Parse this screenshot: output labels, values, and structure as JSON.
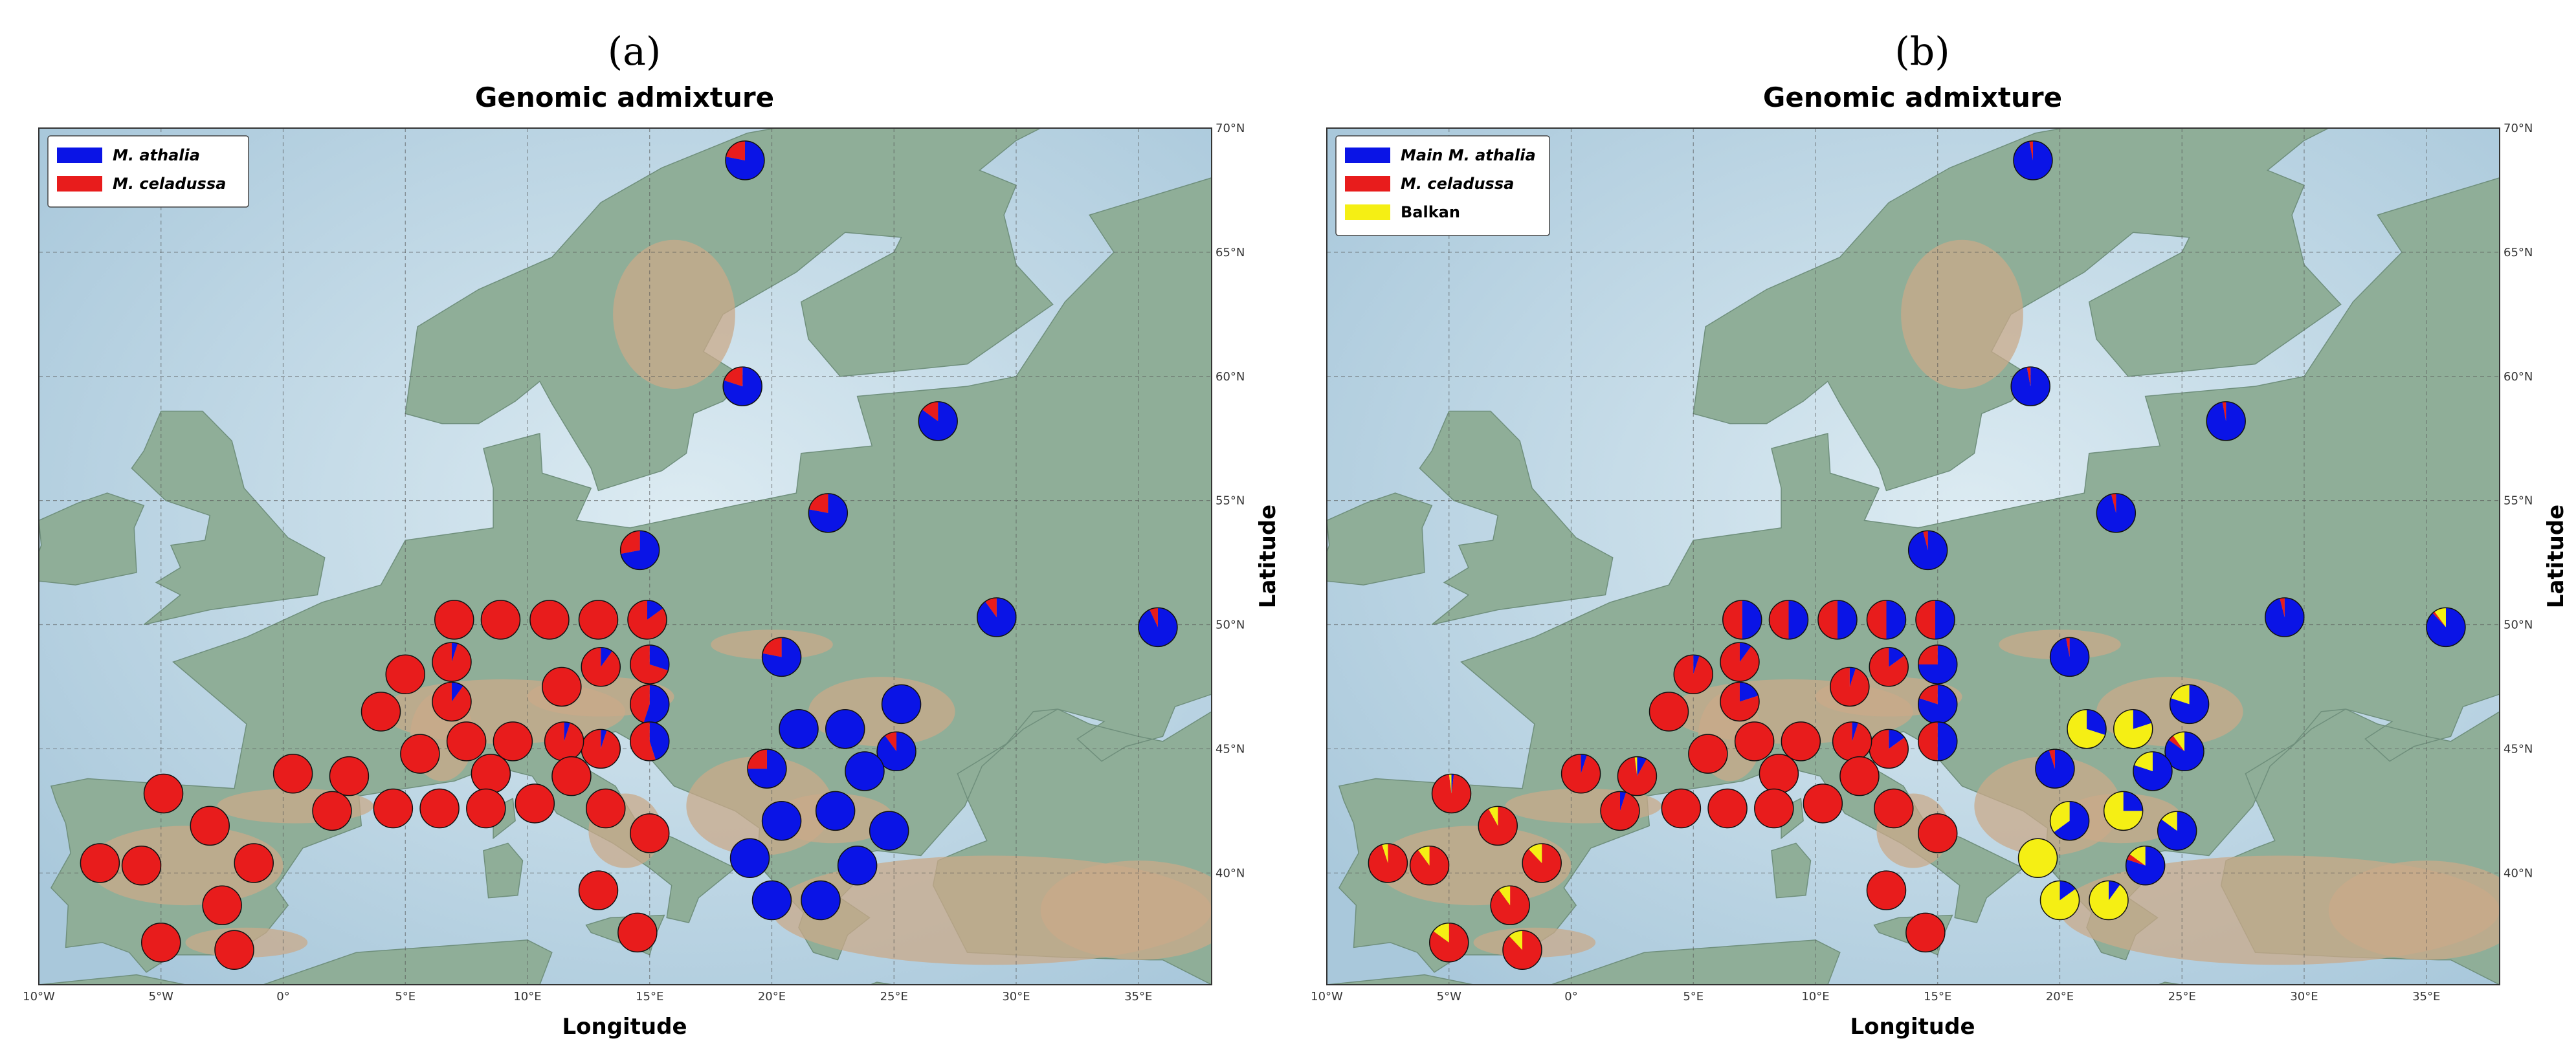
{
  "panels": [
    {
      "letter": "(a)",
      "title": "Genomic admixture",
      "xlabel": "Longitude",
      "ylabel": "Latitude",
      "legend": [
        {
          "label": "M. athalia",
          "color": "#0a14e6",
          "italic": true
        },
        {
          "label": "M. celadussa",
          "color": "#e81c1c",
          "italic": true
        }
      ]
    },
    {
      "letter": "(b)",
      "title": "Genomic admixture",
      "xlabel": "Longitude",
      "ylabel": "Latitude",
      "legend": [
        {
          "label": "Main M. athalia",
          "color": "#0a14e6",
          "italic": true
        },
        {
          "label": "M. celadussa",
          "color": "#e81c1c",
          "italic": true
        },
        {
          "label": "Balkan",
          "color": "#f5ef14",
          "italic": false
        }
      ]
    }
  ],
  "map_axes": {
    "lon_ticks": [
      "10°W",
      "5°W",
      "0°",
      "5°E",
      "10°E",
      "15°E",
      "20°E",
      "25°E",
      "30°E",
      "35°E"
    ],
    "lat_ticks": [
      "40°N",
      "45°N",
      "50°N",
      "55°N",
      "60°N",
      "65°N",
      "70°N"
    ],
    "lon_range": [
      -10,
      38
    ],
    "lat_range": [
      35.5,
      70
    ]
  },
  "colors": {
    "athalia": "#0a14e6",
    "celadussa": "#e81c1c",
    "balkan": "#f5ef14",
    "sea": "#c3dbe8",
    "land": "#8fae98",
    "land_high": "#c9a98a"
  },
  "chart_data": [
    {
      "type": "pie-map",
      "title": "Genomic admixture",
      "xlabel": "Longitude",
      "ylabel": "Latitude",
      "legend": [
        "M. athalia",
        "M. celadussa"
      ],
      "populations": [
        {
          "lon": 18.9,
          "lat": 68.7,
          "athalia": 0.78,
          "celadussa": 0.22
        },
        {
          "lon": 18.8,
          "lat": 59.6,
          "athalia": 0.8,
          "celadussa": 0.2
        },
        {
          "lon": 26.8,
          "lat": 58.2,
          "athalia": 0.85,
          "celadussa": 0.15
        },
        {
          "lon": 22.3,
          "lat": 54.5,
          "athalia": 0.78,
          "celadussa": 0.22
        },
        {
          "lon": 14.6,
          "lat": 53.0,
          "athalia": 0.72,
          "celadussa": 0.28
        },
        {
          "lon": 29.2,
          "lat": 50.3,
          "athalia": 0.9,
          "celadussa": 0.1
        },
        {
          "lon": 35.8,
          "lat": 49.9,
          "athalia": 0.93,
          "celadussa": 0.07
        },
        {
          "lon": 20.4,
          "lat": 48.7,
          "athalia": 0.78,
          "celadussa": 0.22
        },
        {
          "lon": 7.0,
          "lat": 50.2,
          "athalia": 0.0,
          "celadussa": 1.0
        },
        {
          "lon": 8.9,
          "lat": 50.2,
          "athalia": 0.0,
          "celadussa": 1.0
        },
        {
          "lon": 10.9,
          "lat": 50.2,
          "athalia": 0.0,
          "celadussa": 1.0
        },
        {
          "lon": 12.9,
          "lat": 50.2,
          "athalia": 0.0,
          "celadussa": 1.0
        },
        {
          "lon": 14.9,
          "lat": 50.2,
          "athalia": 0.15,
          "celadussa": 0.85
        },
        {
          "lon": 6.9,
          "lat": 48.5,
          "athalia": 0.05,
          "celadussa": 0.95
        },
        {
          "lon": 6.9,
          "lat": 46.9,
          "athalia": 0.1,
          "celadussa": 0.9
        },
        {
          "lon": 5.0,
          "lat": 48.0,
          "athalia": 0.0,
          "celadussa": 1.0
        },
        {
          "lon": 4.0,
          "lat": 46.5,
          "athalia": 0.0,
          "celadussa": 1.0
        },
        {
          "lon": 11.4,
          "lat": 47.5,
          "athalia": 0.0,
          "celadussa": 1.0
        },
        {
          "lon": 13.0,
          "lat": 48.3,
          "athalia": 0.1,
          "celadussa": 0.9
        },
        {
          "lon": 15.0,
          "lat": 48.4,
          "athalia": 0.3,
          "celadussa": 0.7
        },
        {
          "lon": 15.0,
          "lat": 46.8,
          "athalia": 0.55,
          "celadussa": 0.45
        },
        {
          "lon": 15.0,
          "lat": 45.3,
          "athalia": 0.45,
          "celadussa": 0.55
        },
        {
          "lon": 13.0,
          "lat": 45.0,
          "athalia": 0.05,
          "celadussa": 0.95
        },
        {
          "lon": 11.5,
          "lat": 45.3,
          "athalia": 0.05,
          "celadussa": 0.95
        },
        {
          "lon": 9.4,
          "lat": 45.3,
          "athalia": 0.0,
          "celadussa": 1.0
        },
        {
          "lon": 7.5,
          "lat": 45.3,
          "athalia": 0.0,
          "celadussa": 1.0
        },
        {
          "lon": 5.6,
          "lat": 44.8,
          "athalia": 0.0,
          "celadussa": 1.0
        },
        {
          "lon": 8.5,
          "lat": 44.0,
          "athalia": 0.0,
          "celadussa": 1.0
        },
        {
          "lon": 11.8,
          "lat": 43.9,
          "athalia": 0.0,
          "celadussa": 1.0
        },
        {
          "lon": 0.4,
          "lat": 44.0,
          "athalia": 0.0,
          "celadussa": 1.0
        },
        {
          "lon": 2.7,
          "lat": 43.9,
          "athalia": 0.0,
          "celadussa": 1.0
        },
        {
          "lon": 2.0,
          "lat": 42.5,
          "athalia": 0.0,
          "celadussa": 1.0
        },
        {
          "lon": 4.5,
          "lat": 42.6,
          "athalia": 0.0,
          "celadussa": 1.0
        },
        {
          "lon": 6.4,
          "lat": 42.6,
          "athalia": 0.0,
          "celadussa": 1.0
        },
        {
          "lon": 8.3,
          "lat": 42.6,
          "athalia": 0.0,
          "celadussa": 1.0
        },
        {
          "lon": 10.3,
          "lat": 42.8,
          "athalia": 0.0,
          "celadussa": 1.0
        },
        {
          "lon": 13.2,
          "lat": 42.6,
          "athalia": 0.0,
          "celadussa": 1.0
        },
        {
          "lon": 15.0,
          "lat": 41.6,
          "athalia": 0.0,
          "celadussa": 1.0
        },
        {
          "lon": 12.9,
          "lat": 39.3,
          "athalia": 0.0,
          "celadussa": 1.0
        },
        {
          "lon": 14.5,
          "lat": 37.6,
          "athalia": 0.0,
          "celadussa": 1.0
        },
        {
          "lon": -4.9,
          "lat": 43.2,
          "athalia": 0.0,
          "celadussa": 1.0
        },
        {
          "lon": -3.0,
          "lat": 41.9,
          "athalia": 0.0,
          "celadussa": 1.0
        },
        {
          "lon": -7.5,
          "lat": 40.4,
          "athalia": 0.0,
          "celadussa": 1.0
        },
        {
          "lon": -5.8,
          "lat": 40.3,
          "athalia": 0.0,
          "celadussa": 1.0
        },
        {
          "lon": -1.2,
          "lat": 40.4,
          "athalia": 0.0,
          "celadussa": 1.0
        },
        {
          "lon": -2.5,
          "lat": 38.7,
          "athalia": 0.0,
          "celadussa": 1.0
        },
        {
          "lon": -5.0,
          "lat": 37.2,
          "athalia": 0.0,
          "celadussa": 1.0
        },
        {
          "lon": -2.0,
          "lat": 36.9,
          "athalia": 0.0,
          "celadussa": 1.0
        },
        {
          "lon": 25.3,
          "lat": 46.8,
          "athalia": 1.0,
          "celadussa": 0.0
        },
        {
          "lon": 21.1,
          "lat": 45.8,
          "athalia": 1.0,
          "celadussa": 0.0
        },
        {
          "lon": 23.0,
          "lat": 45.8,
          "athalia": 1.0,
          "celadussa": 0.0
        },
        {
          "lon": 25.1,
          "lat": 44.9,
          "athalia": 0.9,
          "celadussa": 0.1
        },
        {
          "lon": 19.8,
          "lat": 44.2,
          "athalia": 0.75,
          "celadussa": 0.25
        },
        {
          "lon": 23.8,
          "lat": 44.1,
          "athalia": 1.0,
          "celadussa": 0.0
        },
        {
          "lon": 20.4,
          "lat": 42.1,
          "athalia": 1.0,
          "celadussa": 0.0
        },
        {
          "lon": 22.6,
          "lat": 42.5,
          "athalia": 1.0,
          "celadussa": 0.0
        },
        {
          "lon": 24.8,
          "lat": 41.7,
          "athalia": 1.0,
          "celadussa": 0.0
        },
        {
          "lon": 19.1,
          "lat": 40.6,
          "athalia": 1.0,
          "celadussa": 0.0
        },
        {
          "lon": 23.5,
          "lat": 40.3,
          "athalia": 1.0,
          "celadussa": 0.0
        },
        {
          "lon": 20.0,
          "lat": 38.9,
          "athalia": 1.0,
          "celadussa": 0.0
        },
        {
          "lon": 22.0,
          "lat": 38.9,
          "athalia": 1.0,
          "celadussa": 0.0
        }
      ]
    },
    {
      "type": "pie-map",
      "title": "Genomic admixture",
      "xlabel": "Longitude",
      "ylabel": "Latitude",
      "legend": [
        "Main M. athalia",
        "M. celadussa",
        "Balkan"
      ],
      "populations": [
        {
          "lon": 18.9,
          "lat": 68.7,
          "athalia": 0.97,
          "celadussa": 0.03,
          "balkan": 0.0
        },
        {
          "lon": 18.8,
          "lat": 59.6,
          "athalia": 0.97,
          "celadussa": 0.03,
          "balkan": 0.0
        },
        {
          "lon": 26.8,
          "lat": 58.2,
          "athalia": 0.97,
          "celadussa": 0.03,
          "balkan": 0.0
        },
        {
          "lon": 22.3,
          "lat": 54.5,
          "athalia": 0.96,
          "celadussa": 0.04,
          "balkan": 0.0
        },
        {
          "lon": 14.6,
          "lat": 53.0,
          "athalia": 0.96,
          "celadussa": 0.04,
          "balkan": 0.0
        },
        {
          "lon": 29.2,
          "lat": 50.3,
          "athalia": 0.96,
          "celadussa": 0.04,
          "balkan": 0.0
        },
        {
          "lon": 35.8,
          "lat": 49.9,
          "athalia": 0.88,
          "celadussa": 0.02,
          "balkan": 0.1
        },
        {
          "lon": 20.4,
          "lat": 48.7,
          "athalia": 0.97,
          "celadussa": 0.03,
          "balkan": 0.0
        },
        {
          "lon": 7.0,
          "lat": 50.2,
          "athalia": 0.5,
          "celadussa": 0.5,
          "balkan": 0.0
        },
        {
          "lon": 8.9,
          "lat": 50.2,
          "athalia": 0.5,
          "celadussa": 0.5,
          "balkan": 0.0
        },
        {
          "lon": 10.9,
          "lat": 50.2,
          "athalia": 0.5,
          "celadussa": 0.5,
          "balkan": 0.0
        },
        {
          "lon": 12.9,
          "lat": 50.2,
          "athalia": 0.5,
          "celadussa": 0.5,
          "balkan": 0.0
        },
        {
          "lon": 14.9,
          "lat": 50.2,
          "athalia": 0.5,
          "celadussa": 0.5,
          "balkan": 0.0
        },
        {
          "lon": 6.9,
          "lat": 48.5,
          "athalia": 0.1,
          "celadussa": 0.9,
          "balkan": 0.0
        },
        {
          "lon": 6.9,
          "lat": 46.9,
          "athalia": 0.2,
          "celadussa": 0.8,
          "balkan": 0.0
        },
        {
          "lon": 5.0,
          "lat": 48.0,
          "athalia": 0.05,
          "celadussa": 0.95,
          "balkan": 0.0
        },
        {
          "lon": 4.0,
          "lat": 46.5,
          "athalia": 0.0,
          "celadussa": 1.0,
          "balkan": 0.0
        },
        {
          "lon": 11.4,
          "lat": 47.5,
          "athalia": 0.05,
          "celadussa": 0.95,
          "balkan": 0.0
        },
        {
          "lon": 13.0,
          "lat": 48.3,
          "athalia": 0.15,
          "celadussa": 0.85,
          "balkan": 0.0
        },
        {
          "lon": 15.0,
          "lat": 48.4,
          "athalia": 0.75,
          "celadussa": 0.25,
          "balkan": 0.0
        },
        {
          "lon": 15.0,
          "lat": 46.8,
          "athalia": 0.8,
          "celadussa": 0.2,
          "balkan": 0.0
        },
        {
          "lon": 15.0,
          "lat": 45.3,
          "athalia": 0.5,
          "celadussa": 0.5,
          "balkan": 0.0
        },
        {
          "lon": 13.0,
          "lat": 45.0,
          "athalia": 0.15,
          "celadussa": 0.85,
          "balkan": 0.0
        },
        {
          "lon": 11.5,
          "lat": 45.3,
          "athalia": 0.05,
          "celadussa": 0.95,
          "balkan": 0.0
        },
        {
          "lon": 9.4,
          "lat": 45.3,
          "athalia": 0.0,
          "celadussa": 1.0,
          "balkan": 0.0
        },
        {
          "lon": 7.5,
          "lat": 45.3,
          "athalia": 0.0,
          "celadussa": 1.0,
          "balkan": 0.0
        },
        {
          "lon": 5.6,
          "lat": 44.8,
          "athalia": 0.0,
          "celadussa": 1.0,
          "balkan": 0.0
        },
        {
          "lon": 8.5,
          "lat": 44.0,
          "athalia": 0.0,
          "celadussa": 1.0,
          "balkan": 0.0
        },
        {
          "lon": 11.8,
          "lat": 43.9,
          "athalia": 0.0,
          "celadussa": 1.0,
          "balkan": 0.0
        },
        {
          "lon": 0.4,
          "lat": 44.0,
          "athalia": 0.05,
          "celadussa": 0.95,
          "balkan": 0.0
        },
        {
          "lon": 2.7,
          "lat": 43.9,
          "athalia": 0.08,
          "celadussa": 0.9,
          "balkan": 0.02
        },
        {
          "lon": 2.0,
          "lat": 42.5,
          "athalia": 0.05,
          "celadussa": 0.95,
          "balkan": 0.0
        },
        {
          "lon": 4.5,
          "lat": 42.6,
          "athalia": 0.0,
          "celadussa": 1.0,
          "balkan": 0.0
        },
        {
          "lon": 6.4,
          "lat": 42.6,
          "athalia": 0.0,
          "celadussa": 1.0,
          "balkan": 0.0
        },
        {
          "lon": 8.3,
          "lat": 42.6,
          "athalia": 0.0,
          "celadussa": 1.0,
          "balkan": 0.0
        },
        {
          "lon": 10.3,
          "lat": 42.8,
          "athalia": 0.0,
          "celadussa": 1.0,
          "balkan": 0.0
        },
        {
          "lon": 13.2,
          "lat": 42.6,
          "athalia": 0.0,
          "celadussa": 1.0,
          "balkan": 0.0
        },
        {
          "lon": 15.0,
          "lat": 41.6,
          "athalia": 0.0,
          "celadussa": 1.0,
          "balkan": 0.0
        },
        {
          "lon": 12.9,
          "lat": 39.3,
          "athalia": 0.0,
          "celadussa": 1.0,
          "balkan": 0.0
        },
        {
          "lon": 14.5,
          "lat": 37.6,
          "athalia": 0.0,
          "celadussa": 1.0,
          "balkan": 0.0
        },
        {
          "lon": -4.9,
          "lat": 43.2,
          "athalia": 0.02,
          "celadussa": 0.96,
          "balkan": 0.02
        },
        {
          "lon": -3.0,
          "lat": 41.9,
          "athalia": 0.0,
          "celadussa": 0.92,
          "balkan": 0.08
        },
        {
          "lon": -7.5,
          "lat": 40.4,
          "athalia": 0.0,
          "celadussa": 0.95,
          "balkan": 0.05
        },
        {
          "lon": -5.8,
          "lat": 40.3,
          "athalia": 0.0,
          "celadussa": 0.9,
          "balkan": 0.1
        },
        {
          "lon": -1.2,
          "lat": 40.4,
          "athalia": 0.0,
          "celadussa": 0.88,
          "balkan": 0.12
        },
        {
          "lon": -2.5,
          "lat": 38.7,
          "athalia": 0.0,
          "celadussa": 0.9,
          "balkan": 0.1
        },
        {
          "lon": -5.0,
          "lat": 37.2,
          "athalia": 0.0,
          "celadussa": 0.85,
          "balkan": 0.15
        },
        {
          "lon": -2.0,
          "lat": 36.9,
          "athalia": 0.0,
          "celadussa": 0.88,
          "balkan": 0.12
        },
        {
          "lon": 25.3,
          "lat": 46.8,
          "athalia": 0.8,
          "celadussa": 0.0,
          "balkan": 0.2
        },
        {
          "lon": 21.1,
          "lat": 45.8,
          "athalia": 0.3,
          "celadussa": 0.0,
          "balkan": 0.7
        },
        {
          "lon": 23.0,
          "lat": 45.8,
          "athalia": 0.2,
          "celadussa": 0.0,
          "balkan": 0.8
        },
        {
          "lon": 25.1,
          "lat": 44.9,
          "athalia": 0.85,
          "celadussa": 0.05,
          "balkan": 0.1
        },
        {
          "lon": 19.8,
          "lat": 44.2,
          "athalia": 0.95,
          "celadussa": 0.05,
          "balkan": 0.0
        },
        {
          "lon": 23.8,
          "lat": 44.1,
          "athalia": 0.8,
          "celadussa": 0.0,
          "balkan": 0.2
        },
        {
          "lon": 20.4,
          "lat": 42.1,
          "athalia": 0.65,
          "celadussa": 0.0,
          "balkan": 0.35
        },
        {
          "lon": 22.6,
          "lat": 42.5,
          "athalia": 0.25,
          "celadussa": 0.0,
          "balkan": 0.75
        },
        {
          "lon": 24.8,
          "lat": 41.7,
          "athalia": 0.85,
          "celadussa": 0.0,
          "balkan": 0.15
        },
        {
          "lon": 19.1,
          "lat": 40.6,
          "athalia": 0.0,
          "celadussa": 0.0,
          "balkan": 1.0
        },
        {
          "lon": 23.5,
          "lat": 40.3,
          "athalia": 0.8,
          "celadussa": 0.05,
          "balkan": 0.15
        },
        {
          "lon": 20.0,
          "lat": 38.9,
          "athalia": 0.15,
          "celadussa": 0.0,
          "balkan": 0.85
        },
        {
          "lon": 22.0,
          "lat": 38.9,
          "athalia": 0.1,
          "celadussa": 0.0,
          "balkan": 0.9
        }
      ]
    }
  ]
}
